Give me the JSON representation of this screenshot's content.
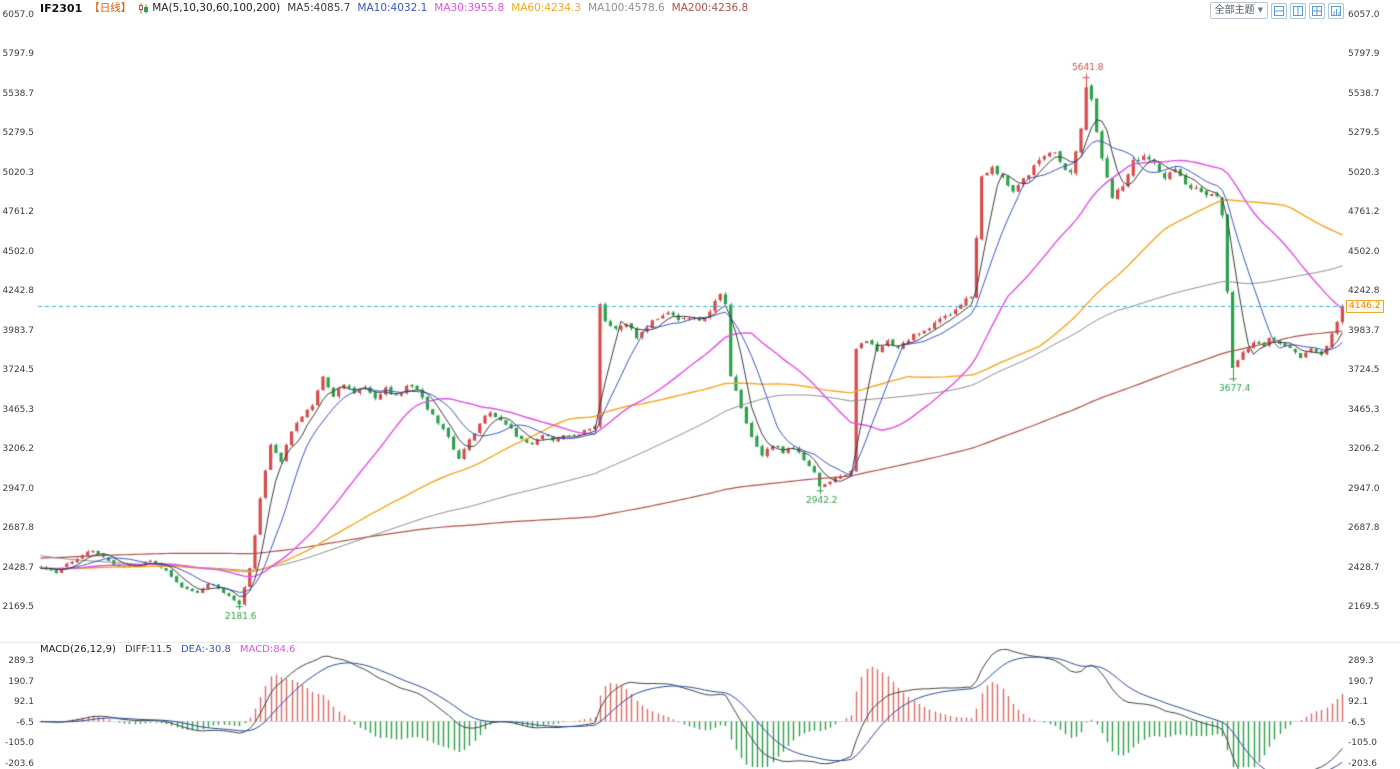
{
  "header": {
    "symbol": "IF2301",
    "period": "【日线】",
    "ma_settings": "MA(5,10,30,60,100,200)",
    "ma_values": [
      {
        "label": "MA5:4085.7"
      },
      {
        "label": "MA10:4032.1"
      },
      {
        "label": "MA30:3955.8"
      },
      {
        "label": "MA60:4234.3"
      },
      {
        "label": "MA100:4578.6"
      },
      {
        "label": "MA200:4236.8"
      }
    ]
  },
  "toolbar": {
    "theme_selector": "全部主题",
    "dropdown_arrow": "▼"
  },
  "macd_legend": {
    "title": "MACD(26,12,9)",
    "diff": "DIFF:11.5",
    "dea": "DEA:-30.8",
    "macd": "MACD:84.6"
  },
  "price_axis": {
    "labels": [
      "6057.0",
      "5797.9",
      "5538.7",
      "5279.5",
      "5020.3",
      "4761.2",
      "4502.0",
      "4242.8",
      "3983.7",
      "3724.5",
      "3465.3",
      "3206.2",
      "2947.0",
      "2687.8",
      "2428.7",
      "2169.5"
    ]
  },
  "macd_axis": {
    "labels": [
      "289.3",
      "190.7",
      "92.1",
      "-6.5",
      "-105.0",
      "-203.6"
    ]
  },
  "last_price": {
    "label": "4146.2",
    "value": 4146.2
  },
  "colors": {
    "up": "#d84b4b",
    "down": "#2ba149",
    "ma5": "#3c3c3c",
    "ma10": "#3a56c8",
    "ma30": "#e24fe2",
    "ma60": "#f5a623",
    "ma100": "#8f8f8f",
    "ma200": "#b0524a",
    "diff_line": "#444444",
    "dea_line": "#2c4a9e",
    "hist_pos": "#dd6b66",
    "hist_neg": "#2ba149",
    "last_price_line": "#38b6e3",
    "last_price_tag": "#f0a830"
  },
  "chart_data": [
    {
      "type": "candlestick",
      "title": "IF2301 daily candles with MA(5,10,30,60,100,200)",
      "visible_bars": 250,
      "ylim": [
        2169.5,
        6057.0
      ],
      "y_ticks": [
        6057.0,
        5797.9,
        5538.7,
        5279.5,
        5020.3,
        4761.2,
        4502.0,
        4242.8,
        3983.7,
        3724.5,
        3465.3,
        3206.2,
        2947.0,
        2687.8,
        2428.7,
        2169.5
      ],
      "ma_periods": [
        5,
        10,
        30,
        60,
        100,
        200
      ],
      "last_close": 4146.2,
      "marked_points": [
        {
          "bar_index": 38,
          "type": "low",
          "label": "2181.6",
          "value": 2181.6
        },
        {
          "bar_index": 149,
          "type": "low",
          "label": "2942.2",
          "value": 2942.2
        },
        {
          "bar_index": 200,
          "type": "high",
          "label": "5641.8",
          "value": 5641.8
        },
        {
          "bar_index": 228,
          "type": "low",
          "label": "3677.4",
          "value": 3677.4
        }
      ],
      "price_path_anchors": [
        [
          0,
          2430
        ],
        [
          3,
          2395
        ],
        [
          6,
          2470
        ],
        [
          10,
          2545
        ],
        [
          13,
          2480
        ],
        [
          15,
          2430
        ],
        [
          18,
          2445
        ],
        [
          21,
          2475
        ],
        [
          24,
          2400
        ],
        [
          27,
          2300
        ],
        [
          30,
          2260
        ],
        [
          32,
          2330
        ],
        [
          35,
          2270
        ],
        [
          38,
          2185
        ],
        [
          40,
          2420
        ],
        [
          42,
          2880
        ],
        [
          44,
          3240
        ],
        [
          46,
          3130
        ],
        [
          48,
          3320
        ],
        [
          50,
          3430
        ],
        [
          52,
          3490
        ],
        [
          54,
          3680
        ],
        [
          56,
          3560
        ],
        [
          58,
          3640
        ],
        [
          60,
          3560
        ],
        [
          62,
          3610
        ],
        [
          64,
          3545
        ],
        [
          66,
          3600
        ],
        [
          68,
          3555
        ],
        [
          70,
          3620
        ],
        [
          72,
          3590
        ],
        [
          74,
          3480
        ],
        [
          76,
          3390
        ],
        [
          78,
          3280
        ],
        [
          80,
          3150
        ],
        [
          82,
          3260
        ],
        [
          84,
          3380
        ],
        [
          86,
          3455
        ],
        [
          88,
          3400
        ],
        [
          90,
          3330
        ],
        [
          92,
          3270
        ],
        [
          94,
          3240
        ],
        [
          96,
          3300
        ],
        [
          98,
          3270
        ],
        [
          100,
          3300
        ],
        [
          102,
          3290
        ],
        [
          104,
          3320
        ],
        [
          106,
          3360
        ],
        [
          107,
          4150
        ],
        [
          108,
          4060
        ],
        [
          110,
          3990
        ],
        [
          112,
          4030
        ],
        [
          114,
          3940
        ],
        [
          116,
          4010
        ],
        [
          118,
          4070
        ],
        [
          120,
          4090
        ],
        [
          122,
          4050
        ],
        [
          124,
          4080
        ],
        [
          126,
          4060
        ],
        [
          128,
          4110
        ],
        [
          130,
          4230
        ],
        [
          131,
          4150
        ],
        [
          132,
          3690
        ],
        [
          134,
          3470
        ],
        [
          136,
          3290
        ],
        [
          138,
          3160
        ],
        [
          140,
          3240
        ],
        [
          142,
          3180
        ],
        [
          144,
          3220
        ],
        [
          146,
          3140
        ],
        [
          148,
          3060
        ],
        [
          149,
          2960
        ],
        [
          151,
          3000
        ],
        [
          153,
          3020
        ],
        [
          155,
          3060
        ],
        [
          156,
          3880
        ],
        [
          158,
          3930
        ],
        [
          160,
          3850
        ],
        [
          162,
          3910
        ],
        [
          164,
          3870
        ],
        [
          166,
          3930
        ],
        [
          168,
          3970
        ],
        [
          170,
          4010
        ],
        [
          172,
          4050
        ],
        [
          174,
          4100
        ],
        [
          176,
          4150
        ],
        [
          178,
          4210
        ],
        [
          180,
          5000
        ],
        [
          182,
          5050
        ],
        [
          184,
          4990
        ],
        [
          186,
          4910
        ],
        [
          188,
          4990
        ],
        [
          190,
          5060
        ],
        [
          192,
          5120
        ],
        [
          194,
          5170
        ],
        [
          195,
          5090
        ],
        [
          197,
          5010
        ],
        [
          199,
          5330
        ],
        [
          200,
          5590
        ],
        [
          201,
          5490
        ],
        [
          202,
          5280
        ],
        [
          204,
          4990
        ],
        [
          205,
          4860
        ],
        [
          207,
          4950
        ],
        [
          209,
          5090
        ],
        [
          211,
          5140
        ],
        [
          213,
          5070
        ],
        [
          215,
          4990
        ],
        [
          217,
          5030
        ],
        [
          219,
          4960
        ],
        [
          221,
          4910
        ],
        [
          223,
          4880
        ],
        [
          225,
          4870
        ],
        [
          226,
          4750
        ],
        [
          227,
          4240
        ],
        [
          228,
          3730
        ],
        [
          230,
          3850
        ],
        [
          232,
          3900
        ],
        [
          234,
          3880
        ],
        [
          235,
          3950
        ],
        [
          237,
          3905
        ],
        [
          239,
          3860
        ],
        [
          241,
          3800
        ],
        [
          243,
          3855
        ],
        [
          245,
          3830
        ],
        [
          247,
          3950
        ],
        [
          249,
          4146.2
        ]
      ],
      "prehistory_anchors": [
        [
          -200,
          2150
        ],
        [
          -170,
          2280
        ],
        [
          -140,
          2480
        ],
        [
          -115,
          2820
        ],
        [
          -100,
          2900
        ],
        [
          -85,
          2680
        ],
        [
          -70,
          2500
        ],
        [
          -55,
          2430
        ],
        [
          -40,
          2410
        ],
        [
          -25,
          2430
        ],
        [
          -10,
          2420
        ],
        [
          -1,
          2428
        ]
      ]
    },
    {
      "type": "macd",
      "params": [
        26,
        12,
        9
      ],
      "ylim": [
        -203.6,
        289.3
      ],
      "y_ticks": [
        289.3,
        190.7,
        92.1,
        -6.5,
        -105.0,
        -203.6
      ],
      "last_values": {
        "diff": 11.5,
        "dea": -30.8,
        "macd": 84.6
      }
    }
  ]
}
